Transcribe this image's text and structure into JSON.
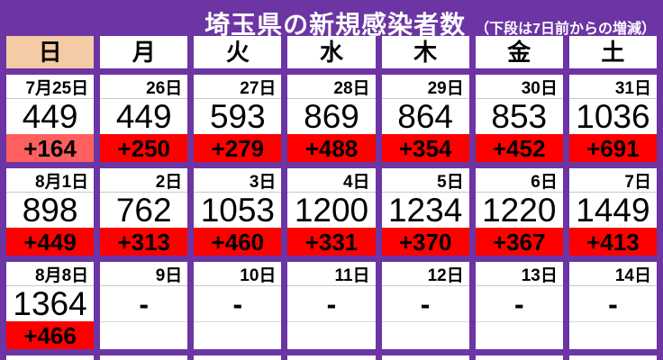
{
  "title": {
    "main": "埼玉県の新規感染者数",
    "subtitle": "（下段は7日前からの増減）"
  },
  "colors": {
    "background_purple": "#6C35A3",
    "cell_white": "#FFFFFF",
    "sunday_header_peach": "#F5CBA6",
    "increase_red": "#FF0000",
    "increase_light_red": "#FF5F5F",
    "title_text": "#FFFFFF",
    "body_text": "#000000",
    "grid_line": "#C9C9C9"
  },
  "weekday_header": [
    {
      "label": "日",
      "highlight": true
    },
    {
      "label": "月",
      "highlight": false
    },
    {
      "label": "火",
      "highlight": false
    },
    {
      "label": "水",
      "highlight": false
    },
    {
      "label": "木",
      "highlight": false
    },
    {
      "label": "金",
      "highlight": false
    },
    {
      "label": "土",
      "highlight": false
    }
  ],
  "weeks": [
    {
      "days": [
        {
          "date": "7月25日",
          "value": "449",
          "change": "+164",
          "change_style": "light-red"
        },
        {
          "date": "26日",
          "value": "449",
          "change": "+250",
          "change_style": "red"
        },
        {
          "date": "27日",
          "value": "593",
          "change": "+279",
          "change_style": "red"
        },
        {
          "date": "28日",
          "value": "869",
          "change": "+488",
          "change_style": "red"
        },
        {
          "date": "29日",
          "value": "864",
          "change": "+354",
          "change_style": "red"
        },
        {
          "date": "30日",
          "value": "853",
          "change": "+452",
          "change_style": "red"
        },
        {
          "date": "31日",
          "value": "1036",
          "change": "+691",
          "change_style": "red"
        }
      ]
    },
    {
      "days": [
        {
          "date": "8月1日",
          "value": "898",
          "change": "+449",
          "change_style": "red"
        },
        {
          "date": "2日",
          "value": "762",
          "change": "+313",
          "change_style": "red"
        },
        {
          "date": "3日",
          "value": "1053",
          "change": "+460",
          "change_style": "red"
        },
        {
          "date": "4日",
          "value": "1200",
          "change": "+331",
          "change_style": "red"
        },
        {
          "date": "5日",
          "value": "1234",
          "change": "+370",
          "change_style": "red"
        },
        {
          "date": "6日",
          "value": "1220",
          "change": "+367",
          "change_style": "red"
        },
        {
          "date": "7日",
          "value": "1449",
          "change": "+413",
          "change_style": "red"
        }
      ]
    },
    {
      "days": [
        {
          "date": "8月8日",
          "value": "1364",
          "change": "+466",
          "change_style": "red"
        },
        {
          "date": "9日",
          "value": "-",
          "change": "",
          "change_style": "none"
        },
        {
          "date": "10日",
          "value": "-",
          "change": "",
          "change_style": "none"
        },
        {
          "date": "11日",
          "value": "-",
          "change": "",
          "change_style": "none"
        },
        {
          "date": "12日",
          "value": "-",
          "change": "",
          "change_style": "none"
        },
        {
          "date": "13日",
          "value": "-",
          "change": "",
          "change_style": "none"
        },
        {
          "date": "14日",
          "value": "-",
          "change": "",
          "change_style": "none"
        }
      ]
    }
  ],
  "chart_data": {
    "type": "table",
    "title": "埼玉県の新規感染者数",
    "subtitle": "（下段は7日前からの増減）",
    "columns": [
      "日",
      "月",
      "火",
      "水",
      "木",
      "金",
      "土"
    ],
    "rows": [
      {
        "dates": [
          "7月25日",
          "26日",
          "27日",
          "28日",
          "29日",
          "30日",
          "31日"
        ],
        "values": [
          449,
          449,
          593,
          869,
          864,
          853,
          1036
        ],
        "changes_from_7_days_prior": [
          164,
          250,
          279,
          488,
          354,
          452,
          691
        ]
      },
      {
        "dates": [
          "8月1日",
          "2日",
          "3日",
          "4日",
          "5日",
          "6日",
          "7日"
        ],
        "values": [
          898,
          762,
          1053,
          1200,
          1234,
          1220,
          1449
        ],
        "changes_from_7_days_prior": [
          449,
          313,
          460,
          331,
          370,
          367,
          413
        ]
      },
      {
        "dates": [
          "8月8日",
          "9日",
          "10日",
          "11日",
          "12日",
          "13日",
          "14日"
        ],
        "values": [
          1364,
          null,
          null,
          null,
          null,
          null,
          null
        ],
        "changes_from_7_days_prior": [
          466,
          null,
          null,
          null,
          null,
          null,
          null
        ]
      }
    ]
  }
}
